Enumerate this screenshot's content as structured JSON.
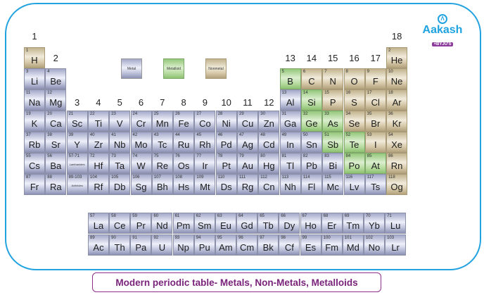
{
  "logo": {
    "text": "Aakash",
    "sub": "+BYJU'S"
  },
  "caption": "Modern periodic table- Metals, Non-Metals, Metalloids",
  "legend": [
    {
      "label": "Metal",
      "cat": "M"
    },
    {
      "label": "Metalloid",
      "cat": "MD"
    },
    {
      "label": "Nonmetal",
      "cat": "N"
    }
  ],
  "colors": {
    "frame": "#22a3e0",
    "metal": "#a3a8c9",
    "metalloid": "#93c77a",
    "nonmetal": "#c2b38d",
    "caption": "#7a237a"
  },
  "groups": [
    "1",
    "2",
    "3",
    "4",
    "5",
    "6",
    "7",
    "8",
    "9",
    "10",
    "11",
    "12",
    "13",
    "14",
    "15",
    "16",
    "17",
    "18"
  ],
  "elements": [
    [
      1,
      "H",
      1,
      1,
      "N"
    ],
    [
      2,
      "He",
      18,
      1,
      "N"
    ],
    [
      3,
      "Li",
      1,
      2,
      "M"
    ],
    [
      4,
      "Be",
      2,
      2,
      "M"
    ],
    [
      5,
      "B",
      13,
      2,
      "MD"
    ],
    [
      6,
      "C",
      14,
      2,
      "N"
    ],
    [
      7,
      "N",
      15,
      2,
      "N"
    ],
    [
      8,
      "O",
      16,
      2,
      "N"
    ],
    [
      9,
      "F",
      17,
      2,
      "N"
    ],
    [
      10,
      "Ne",
      18,
      2,
      "N"
    ],
    [
      11,
      "Na",
      1,
      3,
      "M"
    ],
    [
      12,
      "Mg",
      2,
      3,
      "M"
    ],
    [
      13,
      "Al",
      13,
      3,
      "M"
    ],
    [
      14,
      "Si",
      14,
      3,
      "MD"
    ],
    [
      15,
      "P",
      15,
      3,
      "N"
    ],
    [
      16,
      "S",
      16,
      3,
      "N"
    ],
    [
      17,
      "Cl",
      17,
      3,
      "N"
    ],
    [
      18,
      "Ar",
      18,
      3,
      "N"
    ],
    [
      19,
      "K",
      1,
      4,
      "M"
    ],
    [
      20,
      "Ca",
      2,
      4,
      "M"
    ],
    [
      21,
      "Sc",
      3,
      4,
      "M"
    ],
    [
      22,
      "Ti",
      4,
      4,
      "M"
    ],
    [
      23,
      "V",
      5,
      4,
      "M"
    ],
    [
      24,
      "Cr",
      6,
      4,
      "M"
    ],
    [
      25,
      "Mn",
      7,
      4,
      "M"
    ],
    [
      26,
      "Fe",
      8,
      4,
      "M"
    ],
    [
      27,
      "Co",
      9,
      4,
      "M"
    ],
    [
      28,
      "Ni",
      10,
      4,
      "M"
    ],
    [
      29,
      "Cu",
      11,
      4,
      "M"
    ],
    [
      30,
      "Zn",
      12,
      4,
      "M"
    ],
    [
      31,
      "Ga",
      13,
      4,
      "M"
    ],
    [
      32,
      "Ge",
      14,
      4,
      "MD"
    ],
    [
      33,
      "As",
      15,
      4,
      "MD"
    ],
    [
      34,
      "Se",
      16,
      4,
      "N"
    ],
    [
      35,
      "Br",
      17,
      4,
      "N"
    ],
    [
      36,
      "Kr",
      18,
      4,
      "N"
    ],
    [
      37,
      "Rb",
      1,
      5,
      "M"
    ],
    [
      38,
      "Sr",
      2,
      5,
      "M"
    ],
    [
      39,
      "Y",
      3,
      5,
      "M"
    ],
    [
      40,
      "Zr",
      4,
      5,
      "M"
    ],
    [
      41,
      "Nb",
      5,
      5,
      "M"
    ],
    [
      42,
      "Mo",
      6,
      5,
      "M"
    ],
    [
      43,
      "Tc",
      7,
      5,
      "M"
    ],
    [
      44,
      "Ru",
      8,
      5,
      "M"
    ],
    [
      45,
      "Rh",
      9,
      5,
      "M"
    ],
    [
      46,
      "Pd",
      10,
      5,
      "M"
    ],
    [
      47,
      "Ag",
      11,
      5,
      "M"
    ],
    [
      48,
      "Cd",
      12,
      5,
      "M"
    ],
    [
      49,
      "In",
      13,
      5,
      "M"
    ],
    [
      50,
      "Sn",
      14,
      5,
      "M"
    ],
    [
      51,
      "Sb",
      15,
      5,
      "MD"
    ],
    [
      52,
      "Te",
      16,
      5,
      "MD"
    ],
    [
      53,
      "I",
      17,
      5,
      "N"
    ],
    [
      54,
      "Xe",
      18,
      5,
      "N"
    ],
    [
      55,
      "Cs",
      1,
      6,
      "M"
    ],
    [
      56,
      "Ba",
      2,
      6,
      "M"
    ],
    [
      72,
      "Hf",
      4,
      6,
      "M"
    ],
    [
      73,
      "Ta",
      5,
      6,
      "M"
    ],
    [
      74,
      "W",
      6,
      6,
      "M"
    ],
    [
      75,
      "Re",
      7,
      6,
      "M"
    ],
    [
      76,
      "Os",
      8,
      6,
      "M"
    ],
    [
      77,
      "Ir",
      9,
      6,
      "M"
    ],
    [
      78,
      "Pt",
      10,
      6,
      "M"
    ],
    [
      79,
      "Au",
      11,
      6,
      "M"
    ],
    [
      80,
      "Hg",
      12,
      6,
      "M"
    ],
    [
      81,
      "Tl",
      13,
      6,
      "M"
    ],
    [
      82,
      "Pb",
      14,
      6,
      "M"
    ],
    [
      83,
      "Bi",
      15,
      6,
      "M"
    ],
    [
      84,
      "Po",
      16,
      6,
      "MD"
    ],
    [
      85,
      "At",
      17,
      6,
      "MD"
    ],
    [
      86,
      "Rn",
      18,
      6,
      "N"
    ],
    [
      87,
      "Fr",
      1,
      7,
      "M"
    ],
    [
      88,
      "Ra",
      2,
      7,
      "M"
    ],
    [
      104,
      "Rf",
      4,
      7,
      "M"
    ],
    [
      105,
      "Db",
      5,
      7,
      "M"
    ],
    [
      106,
      "Sg",
      6,
      7,
      "M"
    ],
    [
      107,
      "Bh",
      7,
      7,
      "M"
    ],
    [
      108,
      "Hs",
      8,
      7,
      "M"
    ],
    [
      109,
      "Mt",
      9,
      7,
      "M"
    ],
    [
      110,
      "Ds",
      10,
      7,
      "M"
    ],
    [
      111,
      "Rg",
      11,
      7,
      "M"
    ],
    [
      112,
      "Cn",
      12,
      7,
      "M"
    ],
    [
      113,
      "Nh",
      13,
      7,
      "M"
    ],
    [
      114,
      "Fl",
      14,
      7,
      "M"
    ],
    [
      115,
      "Mc",
      15,
      7,
      "M"
    ],
    [
      116,
      "Lv",
      16,
      7,
      "M"
    ],
    [
      117,
      "Ts",
      17,
      7,
      "M"
    ],
    [
      118,
      "Og",
      18,
      7,
      "N"
    ]
  ],
  "placeholders": [
    {
      "range": "57-71",
      "label": "Lanthanides",
      "group": 3,
      "period": 6
    },
    {
      "range": "89-103",
      "label": "Actinides",
      "group": 3,
      "period": 7
    }
  ],
  "lanthanides": [
    [
      57,
      "La"
    ],
    [
      58,
      "Ce"
    ],
    [
      59,
      "Pr"
    ],
    [
      60,
      "Nd"
    ],
    [
      61,
      "Pm"
    ],
    [
      62,
      "Sm"
    ],
    [
      63,
      "Eu"
    ],
    [
      64,
      "Gd"
    ],
    [
      65,
      "Tb"
    ],
    [
      66,
      "Dy"
    ],
    [
      67,
      "Ho"
    ],
    [
      68,
      "Er"
    ],
    [
      69,
      "Tm"
    ],
    [
      70,
      "Yb"
    ],
    [
      71,
      "Lu"
    ]
  ],
  "actinides": [
    [
      89,
      "Ac"
    ],
    [
      90,
      "Th"
    ],
    [
      91,
      "Pa"
    ],
    [
      92,
      "U"
    ],
    [
      93,
      "Np"
    ],
    [
      94,
      "Pu"
    ],
    [
      95,
      "Am"
    ],
    [
      96,
      "Cm"
    ],
    [
      97,
      "Bk"
    ],
    [
      98,
      "Cf"
    ],
    [
      99,
      "Es"
    ],
    [
      100,
      "Fm"
    ],
    [
      101,
      "Md"
    ],
    [
      102,
      "No"
    ],
    [
      103,
      "Lr"
    ]
  ]
}
